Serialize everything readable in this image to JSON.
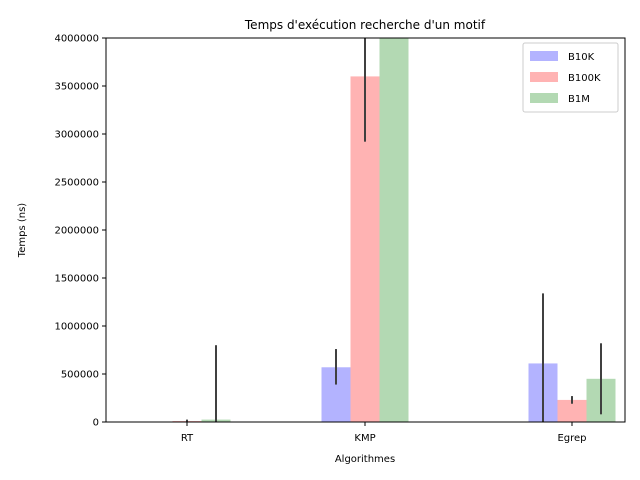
{
  "chart_data": {
    "type": "bar",
    "title": "Temps d'exécution recherche d'un motif",
    "xlabel": "Algorithmes",
    "ylabel": "Temps (ns)",
    "categories": [
      "RT",
      "KMP",
      "Egrep"
    ],
    "ylim": [
      0,
      4000000
    ],
    "yticks": [
      0,
      500000,
      1000000,
      1500000,
      2000000,
      2500000,
      3000000,
      3500000,
      4000000
    ],
    "ytick_labels": [
      "0",
      "500000",
      "1000000",
      "1500000",
      "2000000",
      "2500000",
      "3000000",
      "3500000",
      "4000000"
    ],
    "legend_position": "top-right",
    "grid": false,
    "series": [
      {
        "name": "B10K",
        "color": "#b3b3ff",
        "values": [
          5000,
          570000,
          610000
        ],
        "error_low": [
          5000,
          390000,
          0
        ],
        "error_high": [
          5000,
          760000,
          1340000
        ]
      },
      {
        "name": "B100K",
        "color": "#ffb3b3",
        "values": [
          10000,
          3600000,
          230000
        ],
        "error_low": [
          0,
          2920000,
          190000
        ],
        "error_high": [
          25000,
          4000000,
          270000
        ]
      },
      {
        "name": "B1M",
        "color": "#b3d9b3",
        "values": [
          25000,
          4000000,
          450000
        ],
        "error_low": [
          0,
          4000000,
          80000
        ],
        "error_high": [
          800000,
          4000000,
          820000
        ]
      }
    ]
  }
}
